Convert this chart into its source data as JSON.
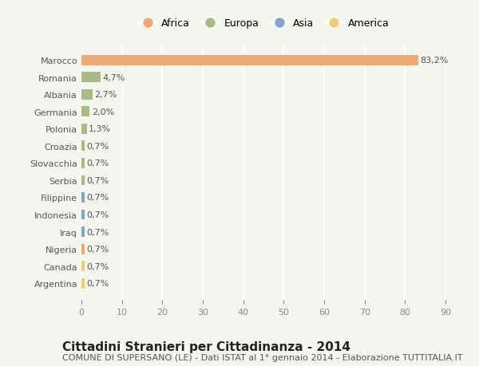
{
  "countries": [
    "Marocco",
    "Romania",
    "Albania",
    "Germania",
    "Polonia",
    "Croazia",
    "Slovacchia",
    "Serbia",
    "Filippine",
    "Indonesia",
    "Iraq",
    "Nigeria",
    "Canada",
    "Argentina"
  ],
  "values": [
    83.2,
    4.7,
    2.7,
    2.0,
    1.3,
    0.7,
    0.7,
    0.7,
    0.7,
    0.7,
    0.7,
    0.7,
    0.7,
    0.7
  ],
  "labels": [
    "83,2%",
    "4,7%",
    "2,7%",
    "2,0%",
    "1,3%",
    "0,7%",
    "0,7%",
    "0,7%",
    "0,7%",
    "0,7%",
    "0,7%",
    "0,7%",
    "0,7%",
    "0,7%"
  ],
  "continents": [
    "Africa",
    "Europa",
    "Europa",
    "Europa",
    "Europa",
    "Europa",
    "Europa",
    "Europa",
    "Asia",
    "Asia",
    "Asia",
    "Africa",
    "America",
    "America"
  ],
  "continent_colors": {
    "Africa": "#F0A875",
    "Europa": "#A8BB85",
    "Asia": "#7DA8C8",
    "America": "#F0CC75"
  },
  "legend_order": [
    "Africa",
    "Europa",
    "Asia",
    "America"
  ],
  "xlim": [
    0,
    90
  ],
  "xticks": [
    0,
    10,
    20,
    30,
    40,
    50,
    60,
    70,
    80,
    90
  ],
  "title": "Cittadini Stranieri per Cittadinanza - 2014",
  "subtitle": "COMUNE DI SUPERSANO (LE) - Dati ISTAT al 1° gennaio 2014 - Elaborazione TUTTITALIA.IT",
  "background_color": "#f5f5f0",
  "bar_height": 0.6,
  "title_fontsize": 11,
  "subtitle_fontsize": 8,
  "label_fontsize": 8,
  "tick_fontsize": 8,
  "legend_fontsize": 9
}
